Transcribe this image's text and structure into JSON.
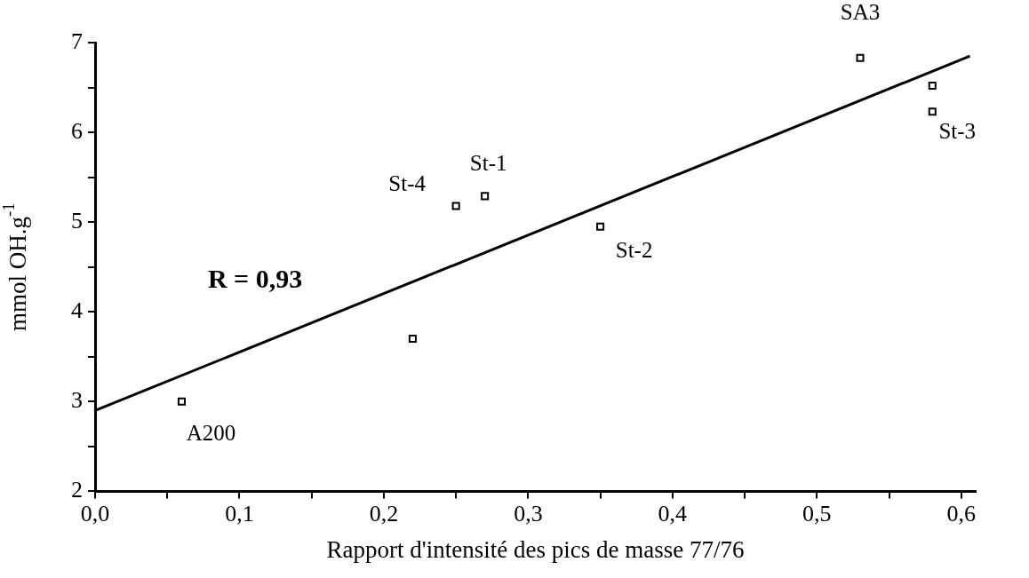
{
  "chart_data": {
    "type": "scatter",
    "xlabel": "Rapport d'intensité des pics de masse 77/76",
    "ylabel": "mmol OH.g$^{-1}$",
    "xlim": [
      0,
      0.61
    ],
    "ylim": [
      2,
      7
    ],
    "xticks": [
      {
        "value": 0,
        "label": "0,0"
      },
      {
        "value": 0.05,
        "label": null
      },
      {
        "value": 0.1,
        "label": "0,1"
      },
      {
        "value": 0.15,
        "label": null
      },
      {
        "value": 0.2,
        "label": "0,2"
      },
      {
        "value": 0.25,
        "label": null
      },
      {
        "value": 0.3,
        "label": "0,3"
      },
      {
        "value": 0.35,
        "label": null
      },
      {
        "value": 0.4,
        "label": "0,4"
      },
      {
        "value": 0.45,
        "label": null
      },
      {
        "value": 0.5,
        "label": "0,5"
      },
      {
        "value": 0.55,
        "label": null
      },
      {
        "value": 0.6,
        "label": "0,6"
      }
    ],
    "yticks": [
      2,
      {
        "value": 2.5,
        "label": null
      },
      3,
      {
        "value": 3.5,
        "label": null
      },
      4,
      {
        "value": 4.5,
        "label": null
      },
      5,
      {
        "value": 5.5,
        "label": null
      },
      6,
      {
        "value": 6.5,
        "label": null
      },
      7
    ],
    "grid": false,
    "legend": false,
    "marker": "square",
    "series": [
      {
        "color": "#000000",
        "x": [
          0.06,
          0.22,
          0.25,
          0.27,
          0.35,
          0.53,
          0.58,
          0.58
        ],
        "values": [
          3.0,
          3.7,
          5.18,
          5.29,
          4.95,
          6.83,
          6.52,
          6.23
        ]
      },
      {
        "type": "line",
        "color": "#000000",
        "marker": "none",
        "line_style": "solid",
        "x": [
          0,
          0.606
        ],
        "values": [
          2.9,
          6.85
        ]
      }
    ],
    "annotations": [
      "R = 0,93",
      {
        "text": "A200",
        "x": 0.06,
        "y": 3.0
      },
      {
        "text": "St-4",
        "x": 0.25,
        "y": 5.18
      },
      {
        "text": "St-1",
        "x": 0.27,
        "y": 5.29
      },
      {
        "text": "St-2",
        "x": 0.35,
        "y": 4.95
      },
      {
        "text": "SA3",
        "x": 0.53,
        "y": 6.83
      },
      {
        "text": "St-3",
        "x": 0.58,
        "y": 6.23
      }
    ]
  }
}
